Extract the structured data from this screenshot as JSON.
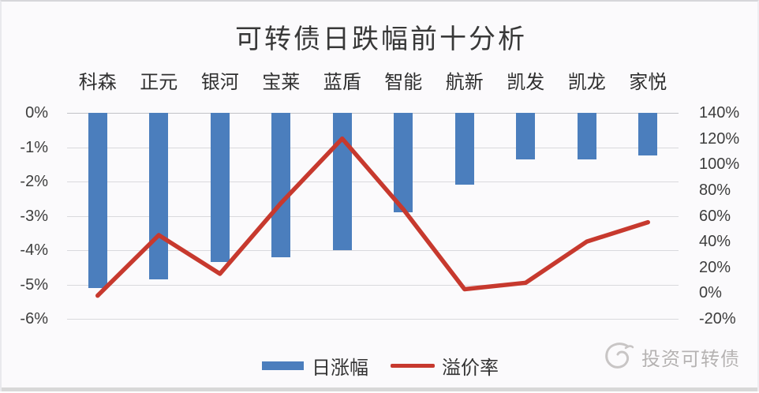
{
  "page": {
    "title": "可转债日跌幅前十分析",
    "background": "#fbfafc"
  },
  "chart_data": {
    "type": "combo-bar-line",
    "title": "可转债日跌幅前十分析",
    "categories": [
      "科森",
      "正元",
      "银河",
      "宝莱",
      "蓝盾",
      "智能",
      "航新",
      "凯发",
      "凯龙",
      "家悦"
    ],
    "series": [
      {
        "name": "日涨幅",
        "type": "bar",
        "axis": "left",
        "color": "#4b7ebd",
        "values_pct": [
          -5.1,
          -4.85,
          -4.35,
          -4.2,
          -4.0,
          -2.9,
          -2.1,
          -1.35,
          -1.35,
          -1.25
        ]
      },
      {
        "name": "溢价率",
        "type": "line",
        "axis": "right",
        "color": "#c7392e",
        "values_pct": [
          -2,
          45,
          15,
          70,
          120,
          65,
          3,
          8,
          40,
          55
        ]
      }
    ],
    "left_axis": {
      "min": -6,
      "max": 0,
      "step": 1,
      "tick_labels": [
        "0%",
        "-1%",
        "-2%",
        "-3%",
        "-4%",
        "-5%",
        "-6%"
      ]
    },
    "right_axis": {
      "min": -20,
      "max": 140,
      "step": 20,
      "tick_labels": [
        "140%",
        "120%",
        "100%",
        "80%",
        "60%",
        "40%",
        "20%",
        "0%",
        "-20%"
      ]
    },
    "grid": "horizontal",
    "legend_position": "bottom"
  },
  "legend": {
    "bar_label": "日涨幅",
    "line_label": "溢价率"
  },
  "watermark": {
    "icon": "brand-swirl-logo",
    "text": "投资可转债"
  },
  "colors": {
    "bar": "#4b7ebd",
    "line": "#c7392e",
    "gridline": "#d9d9dd",
    "axis_text": "#3d3d3d",
    "title_text": "#383838",
    "watermark_text": "#b5b2b2",
    "footer_strip": "#d8d8d8"
  }
}
